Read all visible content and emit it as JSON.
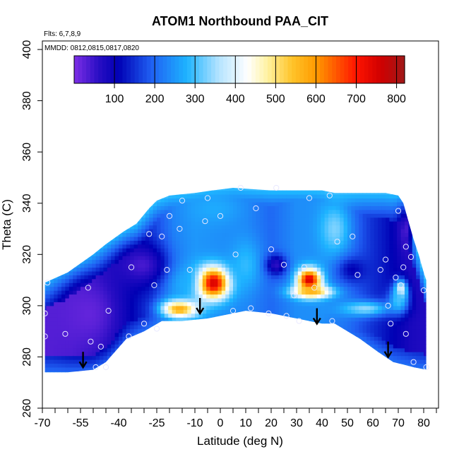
{
  "chart_data": {
    "type": "heatmap",
    "title": "ATOM1 Northbound PAA_CIT",
    "annotations": [
      "Flts: 6,7,8,9",
      "MMDD: 0812,0815,0817,0820"
    ],
    "xlabel": "Latitude (deg N)",
    "ylabel": "Theta (C)",
    "xlim": [
      -70,
      85
    ],
    "ylim": [
      260,
      405
    ],
    "x_ticks": [
      -70,
      -55,
      -40,
      -25,
      -10,
      0,
      10,
      20,
      30,
      40,
      50,
      60,
      70,
      80
    ],
    "x_tick_labels": [
      "-70",
      "-55",
      "-40",
      "-25",
      "-10",
      "0",
      "10",
      "20",
      "30",
      "40",
      "50",
      "60",
      "70",
      "80"
    ],
    "x_minor_ticks": [
      -65,
      -60,
      -50,
      -45,
      -35,
      -30,
      -20,
      -15,
      -5,
      5,
      15,
      25,
      35,
      45,
      55,
      65,
      75,
      85
    ],
    "y_ticks": [
      260,
      280,
      300,
      320,
      340,
      360,
      380,
      400
    ],
    "y_tick_labels": [
      "260",
      "280",
      "300",
      "320",
      "340",
      "360",
      "380",
      "400"
    ],
    "colorbar": {
      "range": [
        0,
        820
      ],
      "ticks": [
        100,
        200,
        300,
        400,
        500,
        600,
        700,
        800
      ],
      "tick_labels": [
        "100",
        "200",
        "300",
        "400",
        "500",
        "600",
        "700",
        "800"
      ],
      "placement": "top-inside"
    },
    "color_stops": [
      {
        "v": 0,
        "c": "#7e2fe6"
      },
      {
        "v": 60,
        "c": "#2a0ec4"
      },
      {
        "v": 110,
        "c": "#0000b4"
      },
      {
        "v": 190,
        "c": "#1f5ef2"
      },
      {
        "v": 280,
        "c": "#1eb4ff"
      },
      {
        "v": 360,
        "c": "#b6e4ff"
      },
      {
        "v": 430,
        "c": "#ffffff"
      },
      {
        "v": 480,
        "c": "#fff2a0"
      },
      {
        "v": 540,
        "c": "#ffc42a"
      },
      {
        "v": 600,
        "c": "#ff9a00"
      },
      {
        "v": 700,
        "c": "#ff1400"
      },
      {
        "v": 760,
        "c": "#d00000"
      },
      {
        "v": 820,
        "c": "#a01818"
      }
    ],
    "grid": false,
    "field": {
      "lat_step": 1.5,
      "theta_step": 1.5,
      "upper_boundary": [
        [
          -69,
          309
        ],
        [
          -60,
          313
        ],
        [
          -50,
          320
        ],
        [
          -45,
          324
        ],
        [
          -38,
          329
        ],
        [
          -33,
          332
        ],
        [
          -28,
          338
        ],
        [
          -25,
          341
        ],
        [
          -20,
          343
        ],
        [
          -10,
          344
        ],
        [
          -3,
          345
        ],
        [
          5,
          346
        ],
        [
          20,
          345
        ],
        [
          40,
          345
        ],
        [
          45,
          344
        ],
        [
          65,
          344
        ],
        [
          70,
          343
        ],
        [
          72,
          340
        ],
        [
          74,
          333
        ],
        [
          76,
          326
        ],
        [
          78,
          320
        ],
        [
          80,
          313
        ],
        [
          81,
          310
        ]
      ],
      "lower_boundary": [
        [
          -69,
          274
        ],
        [
          -60,
          274
        ],
        [
          -50,
          275
        ],
        [
          -45,
          278
        ],
        [
          -37,
          287
        ],
        [
          -30,
          290
        ],
        [
          -23,
          294
        ],
        [
          -15,
          294
        ],
        [
          -5,
          295
        ],
        [
          5,
          297
        ],
        [
          10,
          298
        ],
        [
          20,
          297
        ],
        [
          30,
          295
        ],
        [
          40,
          293
        ],
        [
          45,
          293
        ],
        [
          55,
          287
        ],
        [
          62,
          282
        ],
        [
          68,
          278
        ],
        [
          72,
          277
        ],
        [
          76,
          276
        ],
        [
          81,
          275
        ]
      ],
      "base_profile": [
        [
          -69,
          30
        ],
        [
          -58,
          40
        ],
        [
          -48,
          70
        ],
        [
          -38,
          110
        ],
        [
          -28,
          150
        ],
        [
          -18,
          230
        ],
        [
          -10,
          250
        ],
        [
          0,
          240
        ],
        [
          10,
          230
        ],
        [
          20,
          200
        ],
        [
          30,
          240
        ],
        [
          40,
          240
        ],
        [
          50,
          210
        ],
        [
          60,
          150
        ],
        [
          68,
          110
        ],
        [
          75,
          80
        ],
        [
          81,
          70
        ]
      ],
      "blobs": [
        {
          "lat": -3,
          "theta": 309,
          "v": 780,
          "slat": 6.5,
          "sth": 6,
          "floor": 150
        },
        {
          "lat": -16,
          "theta": 299,
          "v": 600,
          "slat": 7,
          "sth": 3.5,
          "floor": 150
        },
        {
          "lat": 35,
          "theta": 310,
          "v": 770,
          "slat": 4.5,
          "sth": 4.5,
          "floor": 150
        },
        {
          "lat": 36,
          "theta": 305.5,
          "v": 560,
          "slat": 8,
          "sth": 2.5,
          "floor": 150
        },
        {
          "lat": 71,
          "theta": 306,
          "v": 470,
          "slat": 2.5,
          "sth": 4,
          "floor": 150
        },
        {
          "lat": -15,
          "theta": 310,
          "v": 280,
          "slat": 7,
          "sth": 7,
          "floor": 100
        },
        {
          "lat": 10,
          "theta": 316,
          "v": 290,
          "slat": 6,
          "sth": 10,
          "floor": 100
        },
        {
          "lat": 45,
          "theta": 330,
          "v": 330,
          "slat": 6,
          "sth": 10,
          "floor": 100
        },
        {
          "lat": -2,
          "theta": 338,
          "v": 270,
          "slat": 10,
          "sth": 6,
          "floor": 100
        },
        {
          "lat": 57,
          "theta": 299,
          "v": 340,
          "slat": 10,
          "sth": 3,
          "floor": 100
        },
        {
          "lat": 70,
          "theta": 302,
          "v": 300,
          "slat": 4,
          "sth": 5,
          "floor": 100
        },
        {
          "lat": 22,
          "theta": 316,
          "v": 60,
          "slat": 4,
          "sth": 4,
          "floor": 0
        },
        {
          "lat": -31,
          "theta": 316,
          "v": 40,
          "slat": 10,
          "sth": 8,
          "floor": 0
        },
        {
          "lat": -52,
          "theta": 297,
          "v": 20,
          "slat": 12,
          "sth": 14,
          "floor": 0
        },
        {
          "lat": 52,
          "theta": 314,
          "v": 110,
          "slat": 6,
          "sth": 5,
          "floor": 100
        },
        {
          "lat": 73,
          "theta": 330,
          "v": 40,
          "slat": 3,
          "sth": 10,
          "floor": 0
        }
      ]
    },
    "sample_points": [
      {
        "lat": -69,
        "theta": 297
      },
      {
        "lat": -69,
        "theta": 288
      },
      {
        "lat": -68,
        "theta": 309
      },
      {
        "lat": -61,
        "theta": 289
      },
      {
        "lat": -52,
        "theta": 307
      },
      {
        "lat": -51,
        "theta": 286
      },
      {
        "lat": -49,
        "theta": 276
      },
      {
        "lat": -47,
        "theta": 284
      },
      {
        "lat": -45,
        "theta": 276
      },
      {
        "lat": -44,
        "theta": 298
      },
      {
        "lat": -36,
        "theta": 288
      },
      {
        "lat": -35,
        "theta": 315
      },
      {
        "lat": -30,
        "theta": 293
      },
      {
        "lat": -28,
        "theta": 328
      },
      {
        "lat": -26,
        "theta": 308
      },
      {
        "lat": -25,
        "theta": 291
      },
      {
        "lat": -23,
        "theta": 327
      },
      {
        "lat": -21,
        "theta": 314
      },
      {
        "lat": -20,
        "theta": 335
      },
      {
        "lat": -16,
        "theta": 330
      },
      {
        "lat": -15,
        "theta": 341
      },
      {
        "lat": -12,
        "theta": 314
      },
      {
        "lat": -6,
        "theta": 333
      },
      {
        "lat": -5,
        "theta": 342
      },
      {
        "lat": 0,
        "theta": 335
      },
      {
        "lat": 5,
        "theta": 298
      },
      {
        "lat": 6,
        "theta": 320
      },
      {
        "lat": 8,
        "theta": 346
      },
      {
        "lat": 12,
        "theta": 299
      },
      {
        "lat": 14,
        "theta": 338
      },
      {
        "lat": 19,
        "theta": 297
      },
      {
        "lat": 20,
        "theta": 322
      },
      {
        "lat": 22,
        "theta": 346
      },
      {
        "lat": 25,
        "theta": 316
      },
      {
        "lat": 26,
        "theta": 296
      },
      {
        "lat": 29,
        "theta": 304
      },
      {
        "lat": 31,
        "theta": 294
      },
      {
        "lat": 33,
        "theta": 315
      },
      {
        "lat": 35,
        "theta": 342
      },
      {
        "lat": 37,
        "theta": 307
      },
      {
        "lat": 43,
        "theta": 343
      },
      {
        "lat": 44,
        "theta": 294
      },
      {
        "lat": 46,
        "theta": 325
      },
      {
        "lat": 52,
        "theta": 327
      },
      {
        "lat": 54,
        "theta": 312
      },
      {
        "lat": 63,
        "theta": 314
      },
      {
        "lat": 65,
        "theta": 318
      },
      {
        "lat": 66,
        "theta": 300
      },
      {
        "lat": 67,
        "theta": 293
      },
      {
        "lat": 69,
        "theta": 311
      },
      {
        "lat": 70,
        "theta": 337
      },
      {
        "lat": 71,
        "theta": 308
      },
      {
        "lat": 72,
        "theta": 315
      },
      {
        "lat": 73,
        "theta": 289
      },
      {
        "lat": 73,
        "theta": 323
      },
      {
        "lat": 75,
        "theta": 319
      },
      {
        "lat": 76,
        "theta": 278
      },
      {
        "lat": 80,
        "theta": 306
      },
      {
        "lat": 81,
        "theta": 276
      }
    ],
    "arrows": [
      {
        "lat": -54,
        "theta": 282
      },
      {
        "lat": -8,
        "theta": 303
      },
      {
        "lat": 38,
        "theta": 299
      },
      {
        "lat": 66,
        "theta": 286
      }
    ]
  }
}
